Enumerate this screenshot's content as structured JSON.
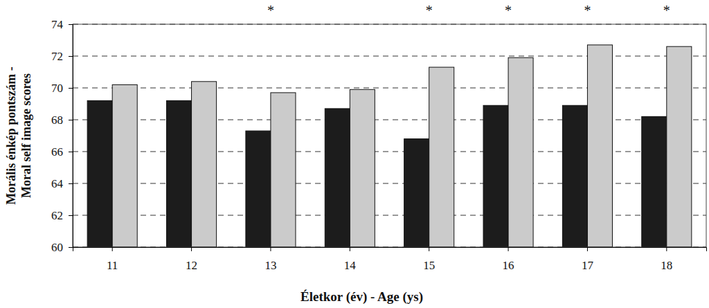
{
  "chart_data": {
    "type": "bar",
    "x_label": "Életkor (év) - Age (ys)",
    "y_label": [
      "Morális énkép pontszám -",
      "Moral self image scores"
    ],
    "categories": [
      "11",
      "12",
      "13",
      "14",
      "15",
      "16",
      "17",
      "18"
    ],
    "series": [
      {
        "color": "#1c1c1c",
        "values": [
          69.2,
          69.2,
          67.3,
          68.7,
          66.8,
          68.9,
          68.9,
          68.2
        ]
      },
      {
        "color": "#cbcbcb",
        "values": [
          70.2,
          70.4,
          69.7,
          69.9,
          71.3,
          71.9,
          72.7,
          72.6
        ]
      }
    ],
    "annotations": [
      {
        "category": "13",
        "text": "*"
      },
      {
        "category": "15",
        "text": "*"
      },
      {
        "category": "16",
        "text": "*"
      },
      {
        "category": "17",
        "text": "*"
      },
      {
        "category": "18",
        "text": "*"
      }
    ],
    "ylim": [
      60,
      74
    ],
    "yticks": [
      60,
      62,
      64,
      66,
      68,
      70,
      72,
      74
    ],
    "grid": true
  }
}
